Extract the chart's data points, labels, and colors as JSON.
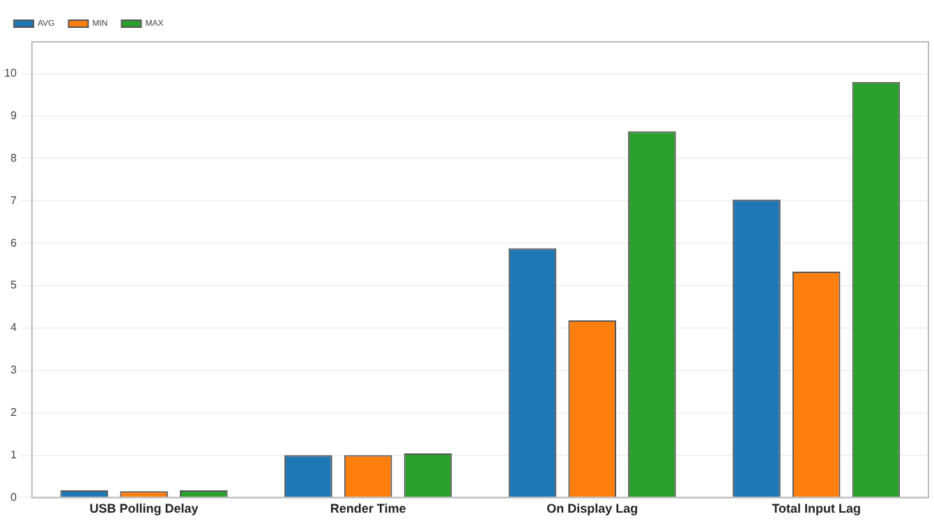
{
  "chart_data": {
    "type": "bar",
    "categories": [
      "USB Polling Delay",
      "Render Time",
      "On Display Lag",
      "Total Input Lag"
    ],
    "series": [
      {
        "name": "AVG",
        "color": "#1f77b4",
        "values": [
          0.17,
          1.0,
          5.88,
          7.03
        ]
      },
      {
        "name": "MIN",
        "color": "#ff7f0e",
        "values": [
          0.15,
          1.0,
          4.18,
          5.33
        ]
      },
      {
        "name": "MAX",
        "color": "#2ca02c",
        "values": [
          0.17,
          1.04,
          8.64,
          9.8
        ]
      }
    ],
    "ylim": [
      0,
      10.75
    ],
    "yticks": [
      0,
      1,
      2,
      3,
      4,
      5,
      6,
      7,
      8,
      9,
      10
    ],
    "grid": "y",
    "legend": "top left"
  }
}
